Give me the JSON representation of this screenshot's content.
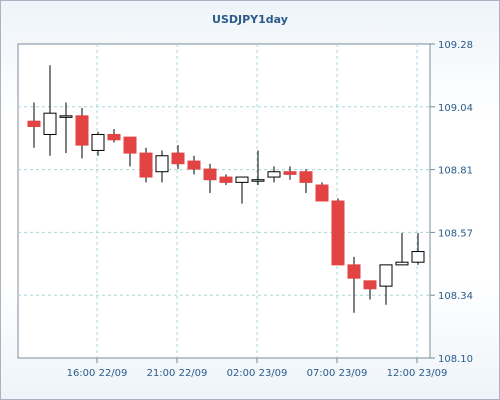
{
  "chart_data": {
    "type": "candlestick",
    "title": "USDJPY1day",
    "ylim": [
      108.1,
      109.28
    ],
    "y_ticks": [
      "109.28",
      "109.04",
      "108.81",
      "108.57",
      "108.34",
      "108.10"
    ],
    "x_ticks": [
      "16:00 22/09",
      "21:00 22/09",
      "02:00 23/09",
      "07:00 23/09",
      "12:00 23/09"
    ],
    "grid": true,
    "colors": {
      "up": "#ffffff",
      "down": "#e24343",
      "wick": "#000000",
      "grid": "#a8d8d8",
      "text": "#2b5b8a"
    },
    "candles": [
      {
        "open": 108.99,
        "high": 109.06,
        "low": 108.89,
        "close": 108.97
      },
      {
        "open": 108.94,
        "high": 109.2,
        "low": 108.86,
        "close": 109.02
      },
      {
        "open": 109.01,
        "high": 109.06,
        "low": 108.87,
        "close": 109.01
      },
      {
        "open": 109.01,
        "high": 109.04,
        "low": 108.85,
        "close": 108.9
      },
      {
        "open": 108.88,
        "high": 108.95,
        "low": 108.86,
        "close": 108.94
      },
      {
        "open": 108.94,
        "high": 108.96,
        "low": 108.91,
        "close": 108.92
      },
      {
        "open": 108.93,
        "high": 108.93,
        "low": 108.82,
        "close": 108.87
      },
      {
        "open": 108.87,
        "high": 108.89,
        "low": 108.76,
        "close": 108.78
      },
      {
        "open": 108.8,
        "high": 108.88,
        "low": 108.76,
        "close": 108.86
      },
      {
        "open": 108.87,
        "high": 108.9,
        "low": 108.81,
        "close": 108.83
      },
      {
        "open": 108.84,
        "high": 108.86,
        "low": 108.79,
        "close": 108.81
      },
      {
        "open": 108.81,
        "high": 108.83,
        "low": 108.72,
        "close": 108.77
      },
      {
        "open": 108.78,
        "high": 108.79,
        "low": 108.75,
        "close": 108.76
      },
      {
        "open": 108.76,
        "high": 108.78,
        "low": 108.68,
        "close": 108.78
      },
      {
        "open": 108.77,
        "high": 108.88,
        "low": 108.75,
        "close": 108.77
      },
      {
        "open": 108.78,
        "high": 108.82,
        "low": 108.76,
        "close": 108.8
      },
      {
        "open": 108.8,
        "high": 108.82,
        "low": 108.77,
        "close": 108.79
      },
      {
        "open": 108.8,
        "high": 108.81,
        "low": 108.72,
        "close": 108.76
      },
      {
        "open": 108.75,
        "high": 108.76,
        "low": 108.69,
        "close": 108.69
      },
      {
        "open": 108.69,
        "high": 108.7,
        "low": 108.45,
        "close": 108.45
      },
      {
        "open": 108.45,
        "high": 108.48,
        "low": 108.27,
        "close": 108.4
      },
      {
        "open": 108.39,
        "high": 108.39,
        "low": 108.32,
        "close": 108.36
      },
      {
        "open": 108.37,
        "high": 108.45,
        "low": 108.3,
        "close": 108.45
      },
      {
        "open": 108.45,
        "high": 108.57,
        "low": 108.45,
        "close": 108.46
      },
      {
        "open": 108.46,
        "high": 108.57,
        "low": 108.45,
        "close": 108.5
      }
    ]
  }
}
